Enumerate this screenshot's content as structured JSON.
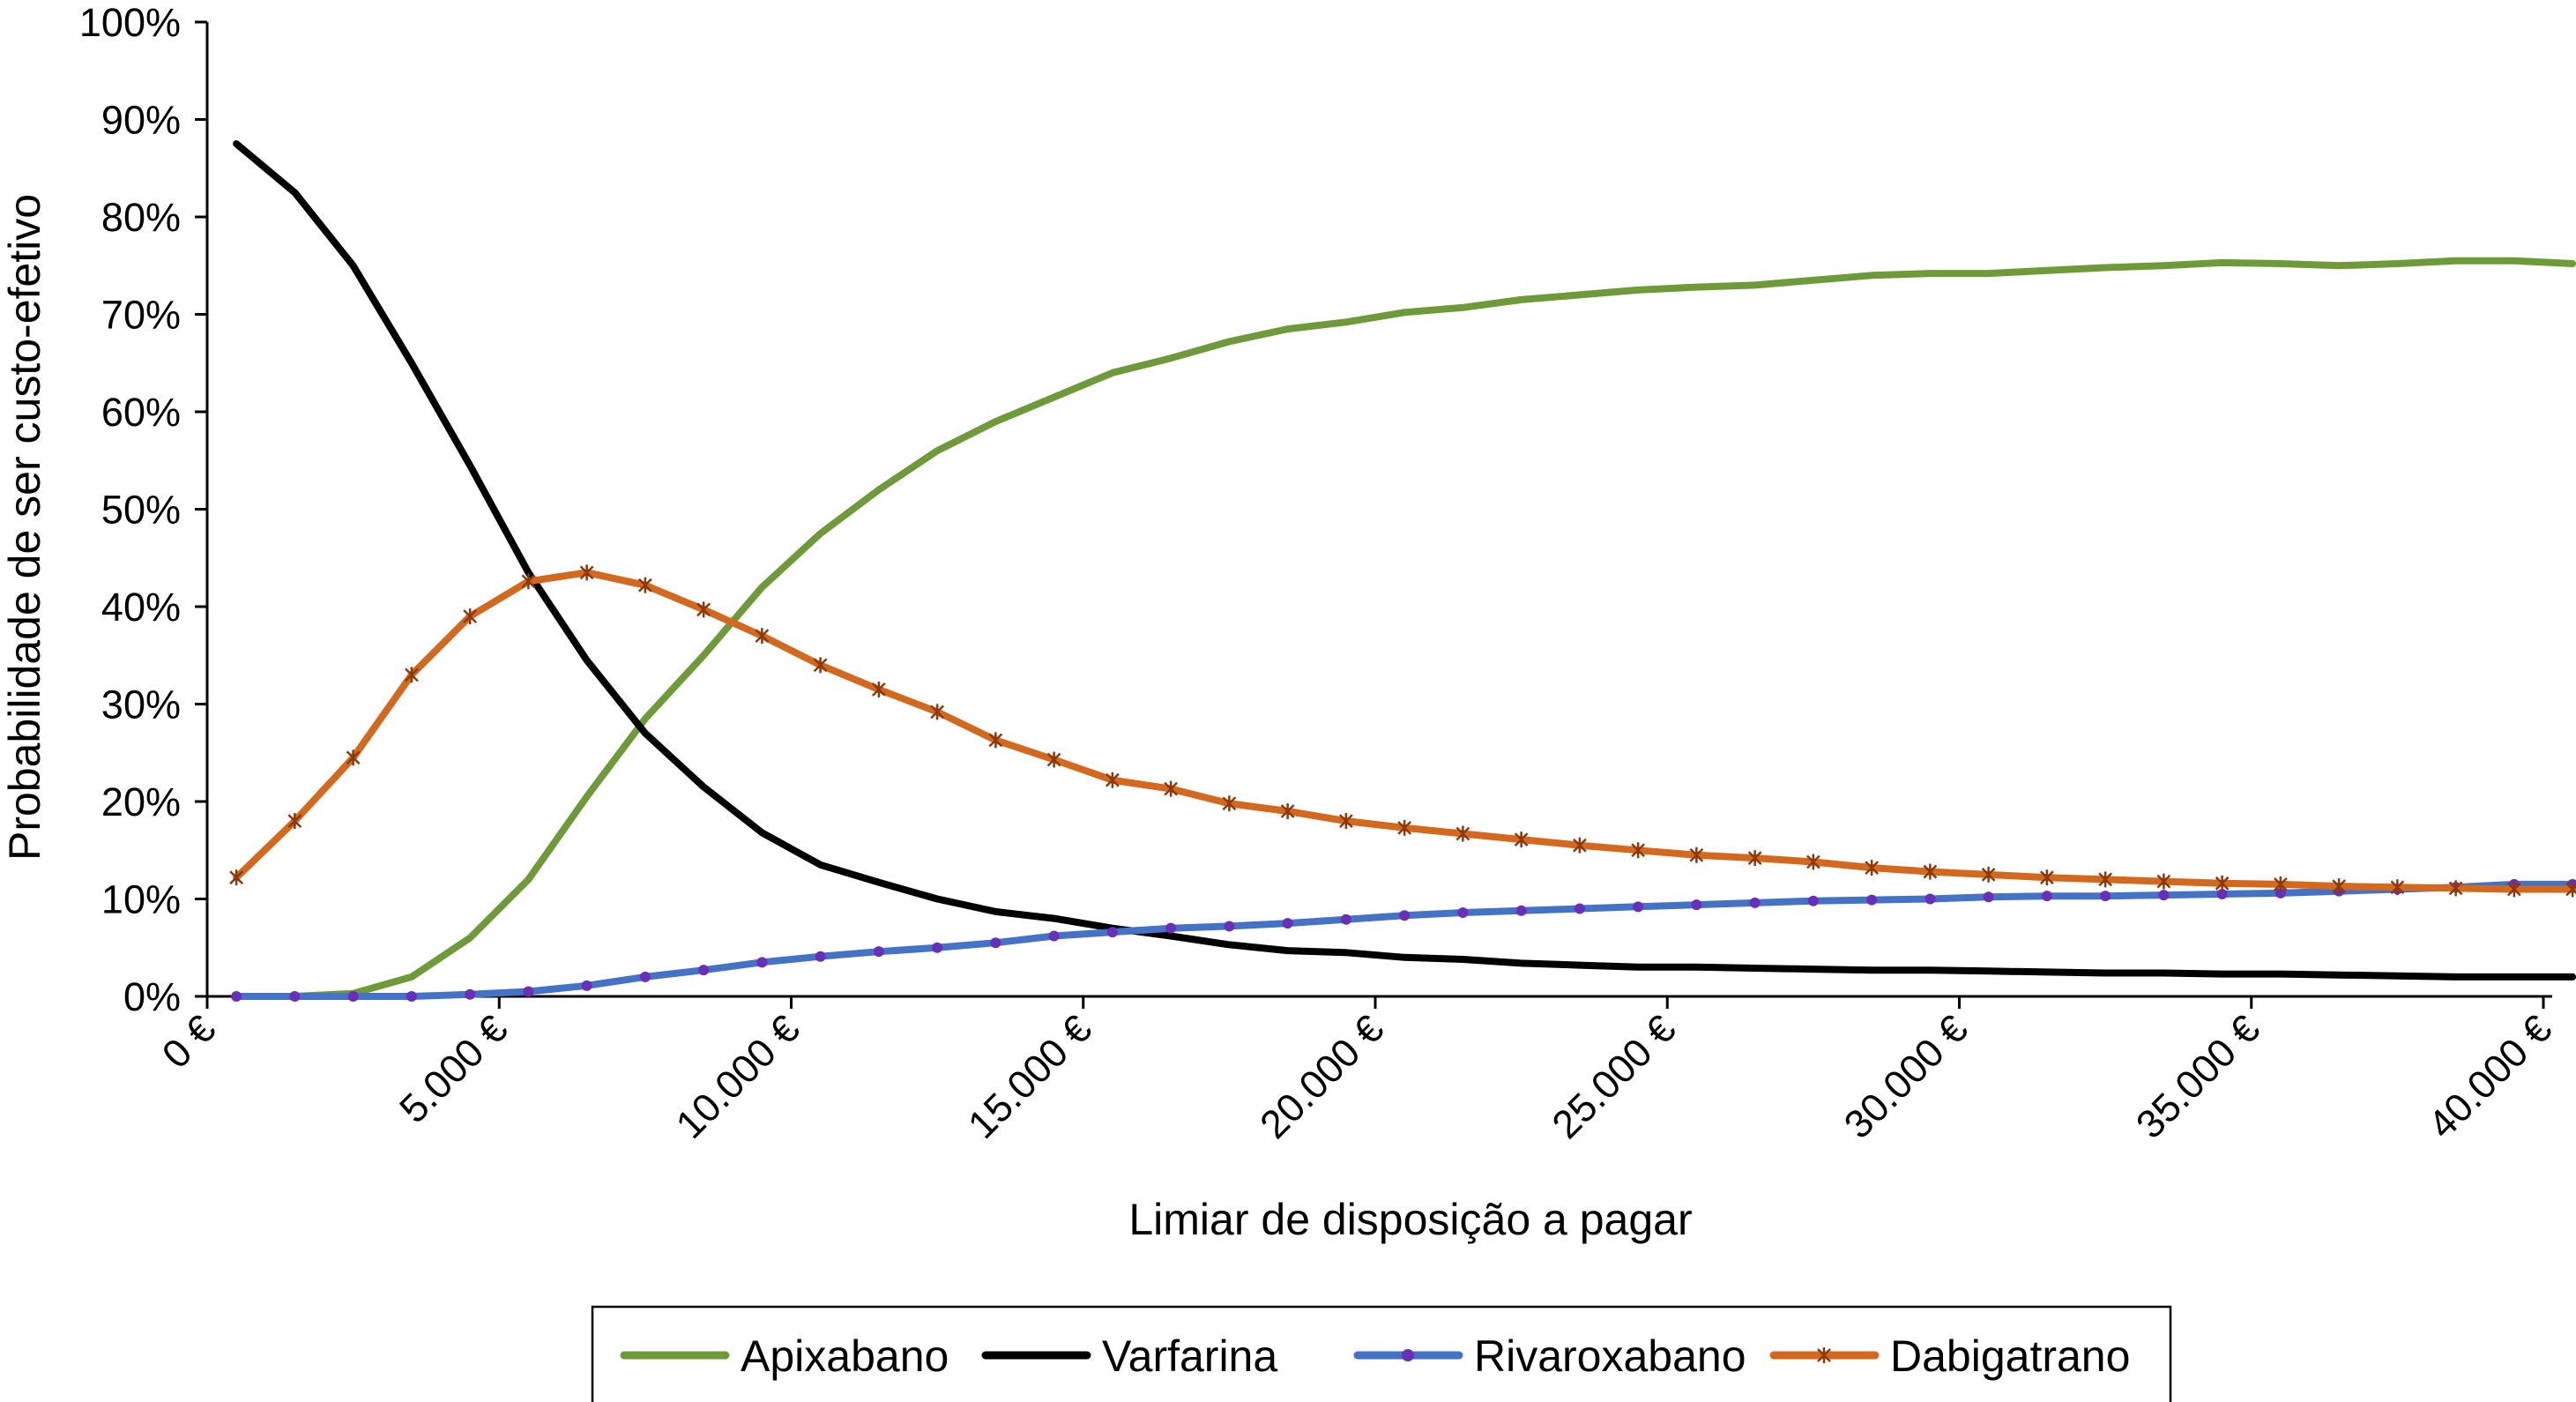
{
  "chart_data": {
    "type": "line",
    "title": "",
    "xlabel": "Limiar de disposição a pagar",
    "ylabel": "Probabilidade de ser custo-efetivo",
    "xlim": [
      0,
      40000
    ],
    "ylim": [
      0,
      100
    ],
    "x_ticks": [
      0,
      5000,
      10000,
      15000,
      20000,
      25000,
      30000,
      35000,
      40000
    ],
    "x_tick_labels": [
      "0 €",
      "5.000 €",
      "10.000 €",
      "15.000 €",
      "20.000 €",
      "25.000 €",
      "30.000 €",
      "35.000 €",
      "40.000 €"
    ],
    "y_ticks": [
      0,
      10,
      20,
      30,
      40,
      50,
      60,
      70,
      80,
      90,
      100
    ],
    "y_tick_labels": [
      "0%",
      "10%",
      "20%",
      "30%",
      "40%",
      "50%",
      "60%",
      "70%",
      "80%",
      "90%",
      "100%"
    ],
    "grid": false,
    "legend_position": "bottom",
    "x": [
      500,
      1500,
      2500,
      3500,
      4500,
      5500,
      6500,
      7500,
      8500,
      9500,
      10500,
      11500,
      12500,
      13500,
      14500,
      15500,
      16500,
      17500,
      18500,
      19500,
      20500,
      21500,
      22500,
      23500,
      24500,
      25500,
      26500,
      27500,
      28500,
      29500,
      30500,
      31500,
      32500,
      33500,
      34500,
      35500,
      36500,
      37500,
      38500,
      39500,
      40500
    ],
    "series": [
      {
        "name": "Apixabano",
        "color": "#6e9a3a",
        "marker": "none",
        "values": [
          0,
          0,
          0.3,
          2,
          6,
          12,
          20.5,
          28.5,
          35,
          42,
          47.5,
          52,
          56,
          59,
          61.5,
          64,
          65.5,
          67.2,
          68.5,
          69.2,
          70.2,
          70.7,
          71.5,
          72,
          72.5,
          72.8,
          73,
          73.5,
          74,
          74.2,
          74.2,
          74.5,
          74.8,
          75,
          75.3,
          75.2,
          75,
          75.2,
          75.5,
          75.5,
          75.2
        ]
      },
      {
        "name": "Varfarina",
        "color": "#000000",
        "marker": "none",
        "values": [
          87.5,
          82.5,
          75,
          65,
          54.5,
          43.5,
          34.5,
          27,
          21.5,
          16.8,
          13.5,
          11.7,
          10,
          8.7,
          8,
          7,
          6.2,
          5.3,
          4.7,
          4.5,
          4,
          3.8,
          3.4,
          3.2,
          3,
          3,
          2.9,
          2.8,
          2.7,
          2.7,
          2.6,
          2.5,
          2.4,
          2.4,
          2.3,
          2.3,
          2.2,
          2.1,
          2,
          2,
          2
        ]
      },
      {
        "name": "Rivaroxabano",
        "color": "#4472c4",
        "marker": "dot",
        "values": [
          0,
          0,
          0,
          0,
          0.2,
          0.5,
          1.1,
          2,
          2.7,
          3.5,
          4.1,
          4.6,
          5,
          5.5,
          6.2,
          6.6,
          7,
          7.2,
          7.5,
          7.9,
          8.3,
          8.6,
          8.8,
          9,
          9.2,
          9.4,
          9.6,
          9.8,
          9.9,
          10,
          10.2,
          10.3,
          10.3,
          10.4,
          10.5,
          10.6,
          10.8,
          11,
          11.2,
          11.5,
          11.5
        ]
      },
      {
        "name": "Dabigatrano",
        "color": "#d2691e",
        "marker": "star",
        "values": [
          12.2,
          18,
          24.5,
          33,
          39,
          42.6,
          43.5,
          42.2,
          39.7,
          37,
          34,
          31.5,
          29.2,
          26.3,
          24.3,
          22.2,
          21.3,
          19.8,
          19,
          18,
          17.3,
          16.7,
          16.1,
          15.5,
          15,
          14.5,
          14.2,
          13.8,
          13.2,
          12.8,
          12.5,
          12.2,
          12,
          11.8,
          11.6,
          11.5,
          11.3,
          11.2,
          11.1,
          11,
          11
        ]
      }
    ]
  }
}
